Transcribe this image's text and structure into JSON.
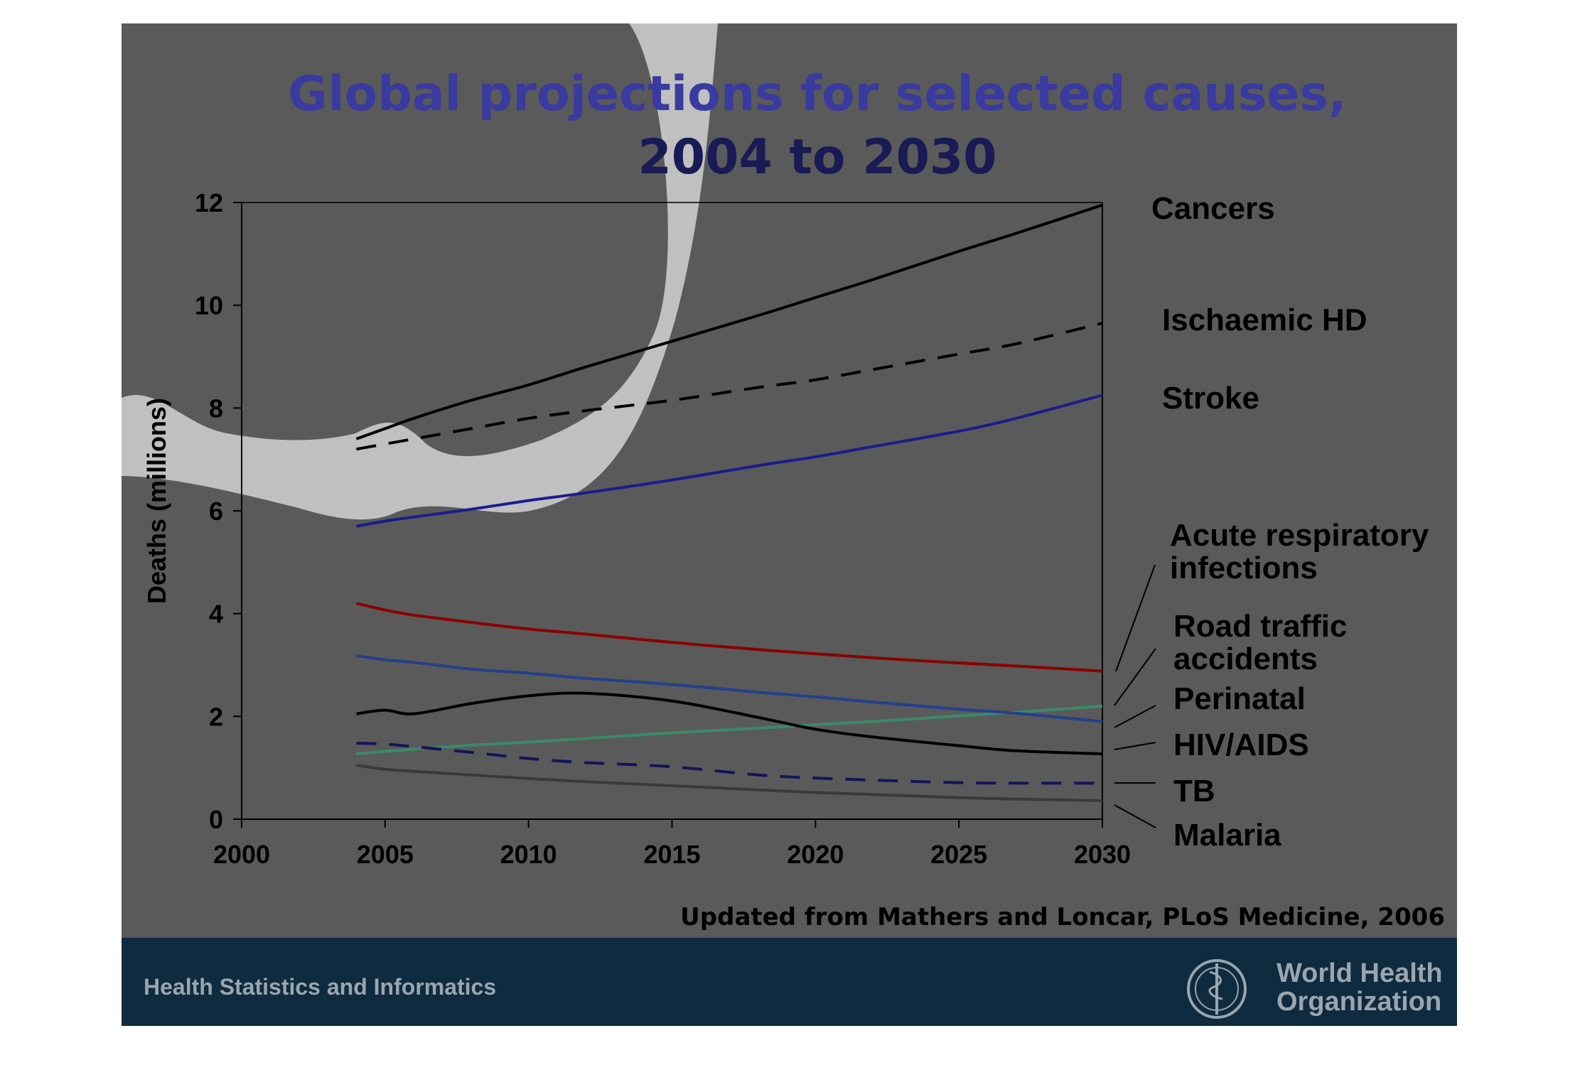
{
  "slide": {
    "title_line1": "Global projections for selected causes,",
    "title_line2": "2004 to 2030",
    "source_note": "Updated from Mathers and Loncar, PLoS Medicine, 2006",
    "footer_left": "Health Statistics and Informatics",
    "org_line1": "World Health",
    "org_line2": "Organization",
    "colors": {
      "slide_bg": "#5a5a5a",
      "swoosh": "#c0c0c0",
      "footer_bg": "#0e2b40",
      "title_line1": "#3a3aa0",
      "title_line2": "#1a1a55"
    }
  },
  "chart_data": {
    "type": "line",
    "ylabel": "Deaths (millions)",
    "xlabel": "",
    "xlim": [
      2000,
      2030
    ],
    "ylim": [
      0,
      12
    ],
    "xticks": [
      2000,
      2005,
      2010,
      2015,
      2020,
      2025,
      2030
    ],
    "yticks": [
      0,
      2,
      4,
      6,
      8,
      10,
      12
    ],
    "grid": false,
    "legend": "direct labels at right",
    "x": [
      2004,
      2005,
      2006,
      2008,
      2010,
      2012,
      2015,
      2018,
      2020,
      2022,
      2025,
      2027,
      2030
    ],
    "series": [
      {
        "name": "Cancers",
        "color": "#000000",
        "dash": "solid",
        "values": [
          7.4,
          7.6,
          7.8,
          8.15,
          8.45,
          8.8,
          9.3,
          9.8,
          10.15,
          10.5,
          11.05,
          11.4,
          11.95
        ]
      },
      {
        "name": "Ischaemic HD",
        "color": "#000000",
        "dash": "dashed",
        "values": [
          7.2,
          7.3,
          7.4,
          7.6,
          7.8,
          7.95,
          8.15,
          8.4,
          8.55,
          8.75,
          9.05,
          9.25,
          9.65
        ]
      },
      {
        "name": "Stroke",
        "color": "#1c1c8c",
        "dash": "solid",
        "values": [
          5.7,
          5.8,
          5.88,
          6.03,
          6.2,
          6.35,
          6.6,
          6.88,
          7.05,
          7.25,
          7.55,
          7.8,
          8.25
        ]
      },
      {
        "name": "Acute respiratory infections",
        "color": "#8b0000",
        "dash": "solid",
        "values": [
          4.2,
          4.07,
          3.97,
          3.83,
          3.7,
          3.6,
          3.44,
          3.3,
          3.22,
          3.14,
          3.04,
          2.98,
          2.88
        ]
      },
      {
        "name": "Road traffic accidents",
        "color": "#3a8a6a",
        "dash": "solid",
        "values": [
          1.27,
          1.32,
          1.36,
          1.44,
          1.5,
          1.57,
          1.68,
          1.77,
          1.84,
          1.9,
          2.01,
          2.08,
          2.2
        ]
      },
      {
        "name": "Perinatal",
        "color": "#24408c",
        "dash": "solid",
        "values": [
          3.18,
          3.1,
          3.05,
          2.92,
          2.84,
          2.74,
          2.62,
          2.47,
          2.38,
          2.28,
          2.14,
          2.06,
          1.9
        ]
      },
      {
        "name": "HIV/AIDS",
        "color": "#000000",
        "dash": "solid",
        "values": [
          2.05,
          2.12,
          2.05,
          2.25,
          2.4,
          2.45,
          2.3,
          1.98,
          1.75,
          1.6,
          1.43,
          1.33,
          1.27
        ]
      },
      {
        "name": "TB",
        "color": "#14145a",
        "dash": "dashed",
        "values": [
          1.48,
          1.46,
          1.41,
          1.3,
          1.18,
          1.1,
          1.02,
          0.86,
          0.8,
          0.76,
          0.71,
          0.7,
          0.7
        ]
      },
      {
        "name": "Malaria",
        "color": "#3a3a3a",
        "dash": "solid",
        "values": [
          1.05,
          0.97,
          0.93,
          0.86,
          0.79,
          0.73,
          0.65,
          0.57,
          0.52,
          0.48,
          0.42,
          0.39,
          0.36
        ]
      }
    ],
    "label_text": {
      "Cancers": [
        "Cancers"
      ],
      "Ischaemic HD": [
        "Ischaemic HD"
      ],
      "Stroke": [
        "Stroke"
      ],
      "Acute respiratory infections": [
        "Acute respiratory",
        "infections"
      ],
      "Road traffic accidents": [
        "Road traffic",
        "accidents"
      ],
      "Perinatal": [
        "Perinatal"
      ],
      "HIV/AIDS": [
        "HIV/AIDS"
      ],
      "TB": [
        "TB"
      ],
      "Malaria": [
        "Malaria"
      ]
    }
  }
}
